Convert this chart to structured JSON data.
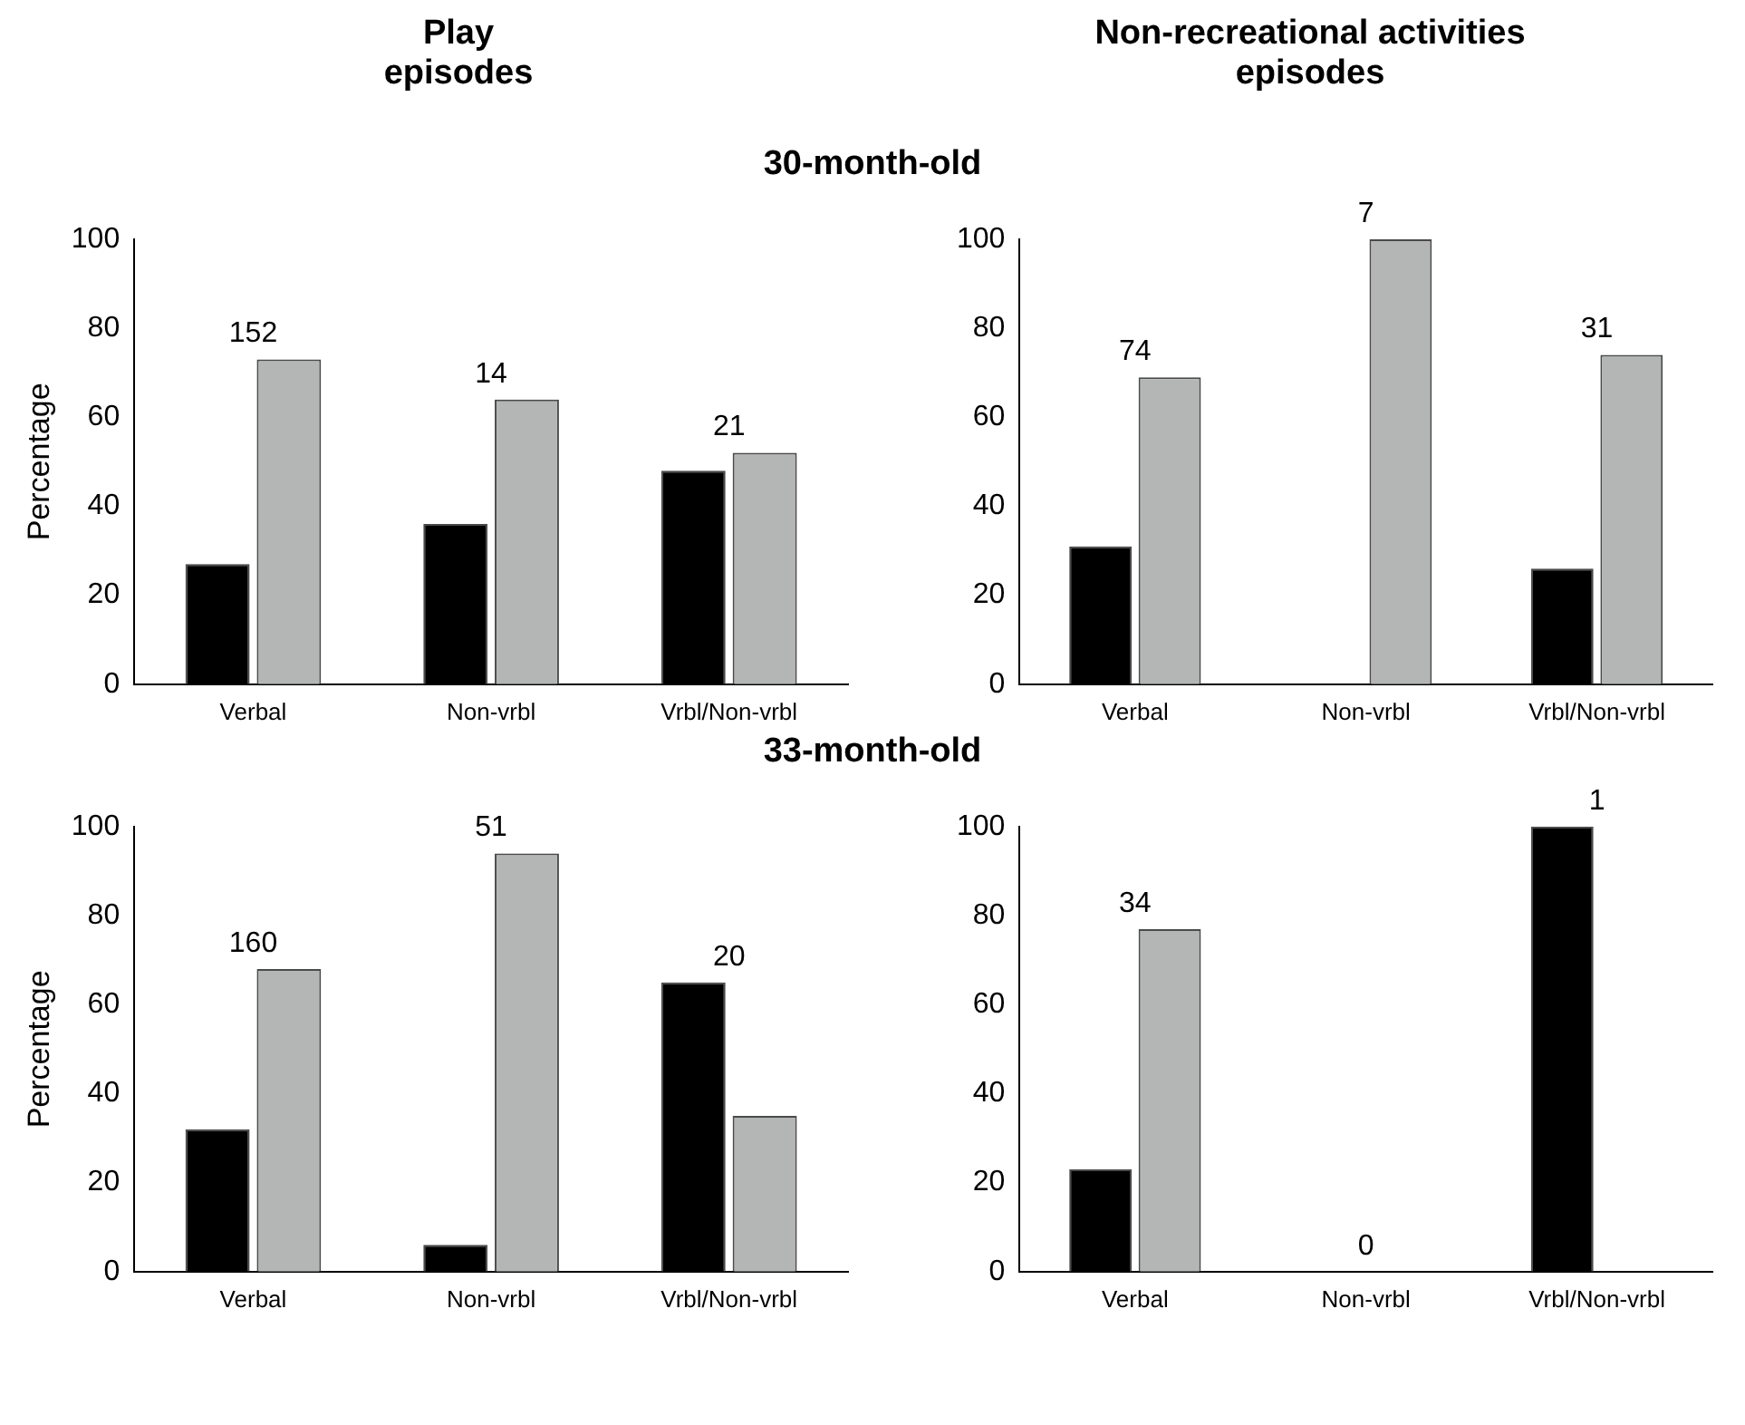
{
  "chart_data": [
    {
      "type": "bar",
      "title": "Play episodes",
      "subtitle": "30-month-old",
      "ylabel": "Percentage",
      "categories": [
        "Verbal",
        "Non-vrbl",
        "Vrbl/Non-vrbl"
      ],
      "series": [
        {
          "color": "#000000",
          "values": [
            27,
            36,
            48
          ]
        },
        {
          "color": "#b4b6b6",
          "values": [
            73,
            64,
            52
          ]
        }
      ],
      "ylim": [
        0,
        100
      ],
      "yticks": [
        0,
        20,
        40,
        60,
        80,
        100
      ],
      "grid": false,
      "legend": false,
      "annotations": [
        {
          "text": "152",
          "x": "Verbal",
          "y": 73
        },
        {
          "text": "14",
          "x": "Non-vrbl",
          "y": 64
        },
        {
          "text": "21",
          "x": "Vrbl/Non-vrbl",
          "y": 52
        }
      ]
    },
    {
      "type": "bar",
      "title": "Non-recreational activities episodes",
      "categories": [
        "Verbal",
        "Non-vrbl",
        "Vrbl/Non-vrbl"
      ],
      "series": [
        {
          "color": "#000000",
          "values": [
            31,
            0,
            26
          ]
        },
        {
          "color": "#b4b6b6",
          "values": [
            69,
            100,
            74
          ]
        }
      ],
      "ylim": [
        0,
        100
      ],
      "yticks": [
        0,
        20,
        40,
        60,
        80,
        100
      ],
      "grid": false,
      "legend": false,
      "annotations": [
        {
          "text": "74",
          "x": "Verbal",
          "y": 69
        },
        {
          "text": "7",
          "x": "Non-vrbl",
          "y": 100
        },
        {
          "text": "31",
          "x": "Vrbl/Non-vrbl",
          "y": 74
        }
      ]
    },
    {
      "type": "bar",
      "subtitle": "33-month-old",
      "ylabel": "Percentage",
      "categories": [
        "Verbal",
        "Non-vrbl",
        "Vrbl/Non-vrbl"
      ],
      "series": [
        {
          "color": "#000000",
          "values": [
            32,
            6,
            65
          ]
        },
        {
          "color": "#b4b6b6",
          "values": [
            68,
            94,
            35
          ]
        }
      ],
      "ylim": [
        0,
        100
      ],
      "yticks": [
        0,
        20,
        40,
        60,
        80,
        100
      ],
      "grid": false,
      "legend": false,
      "annotations": [
        {
          "text": "160",
          "x": "Verbal",
          "y": 68
        },
        {
          "text": "51",
          "x": "Non-vrbl",
          "y": 94
        },
        {
          "text": "20",
          "x": "Vrbl/Non-vrbl",
          "y": 65
        }
      ]
    },
    {
      "type": "bar",
      "categories": [
        "Verbal",
        "Non-vrbl",
        "Vrbl/Non-vrbl"
      ],
      "series": [
        {
          "color": "#000000",
          "values": [
            23,
            0,
            100
          ]
        },
        {
          "color": "#b4b6b6",
          "values": [
            77,
            0,
            0
          ]
        }
      ],
      "ylim": [
        0,
        100
      ],
      "yticks": [
        0,
        20,
        40,
        60,
        80,
        100
      ],
      "grid": false,
      "legend": false,
      "annotations": [
        {
          "text": "34",
          "x": "Verbal",
          "y": 77
        },
        {
          "text": "0",
          "x": "Non-vrbl",
          "y": 0
        },
        {
          "text": "1",
          "x": "Vrbl/Non-vrbl",
          "y": 100
        }
      ]
    }
  ]
}
